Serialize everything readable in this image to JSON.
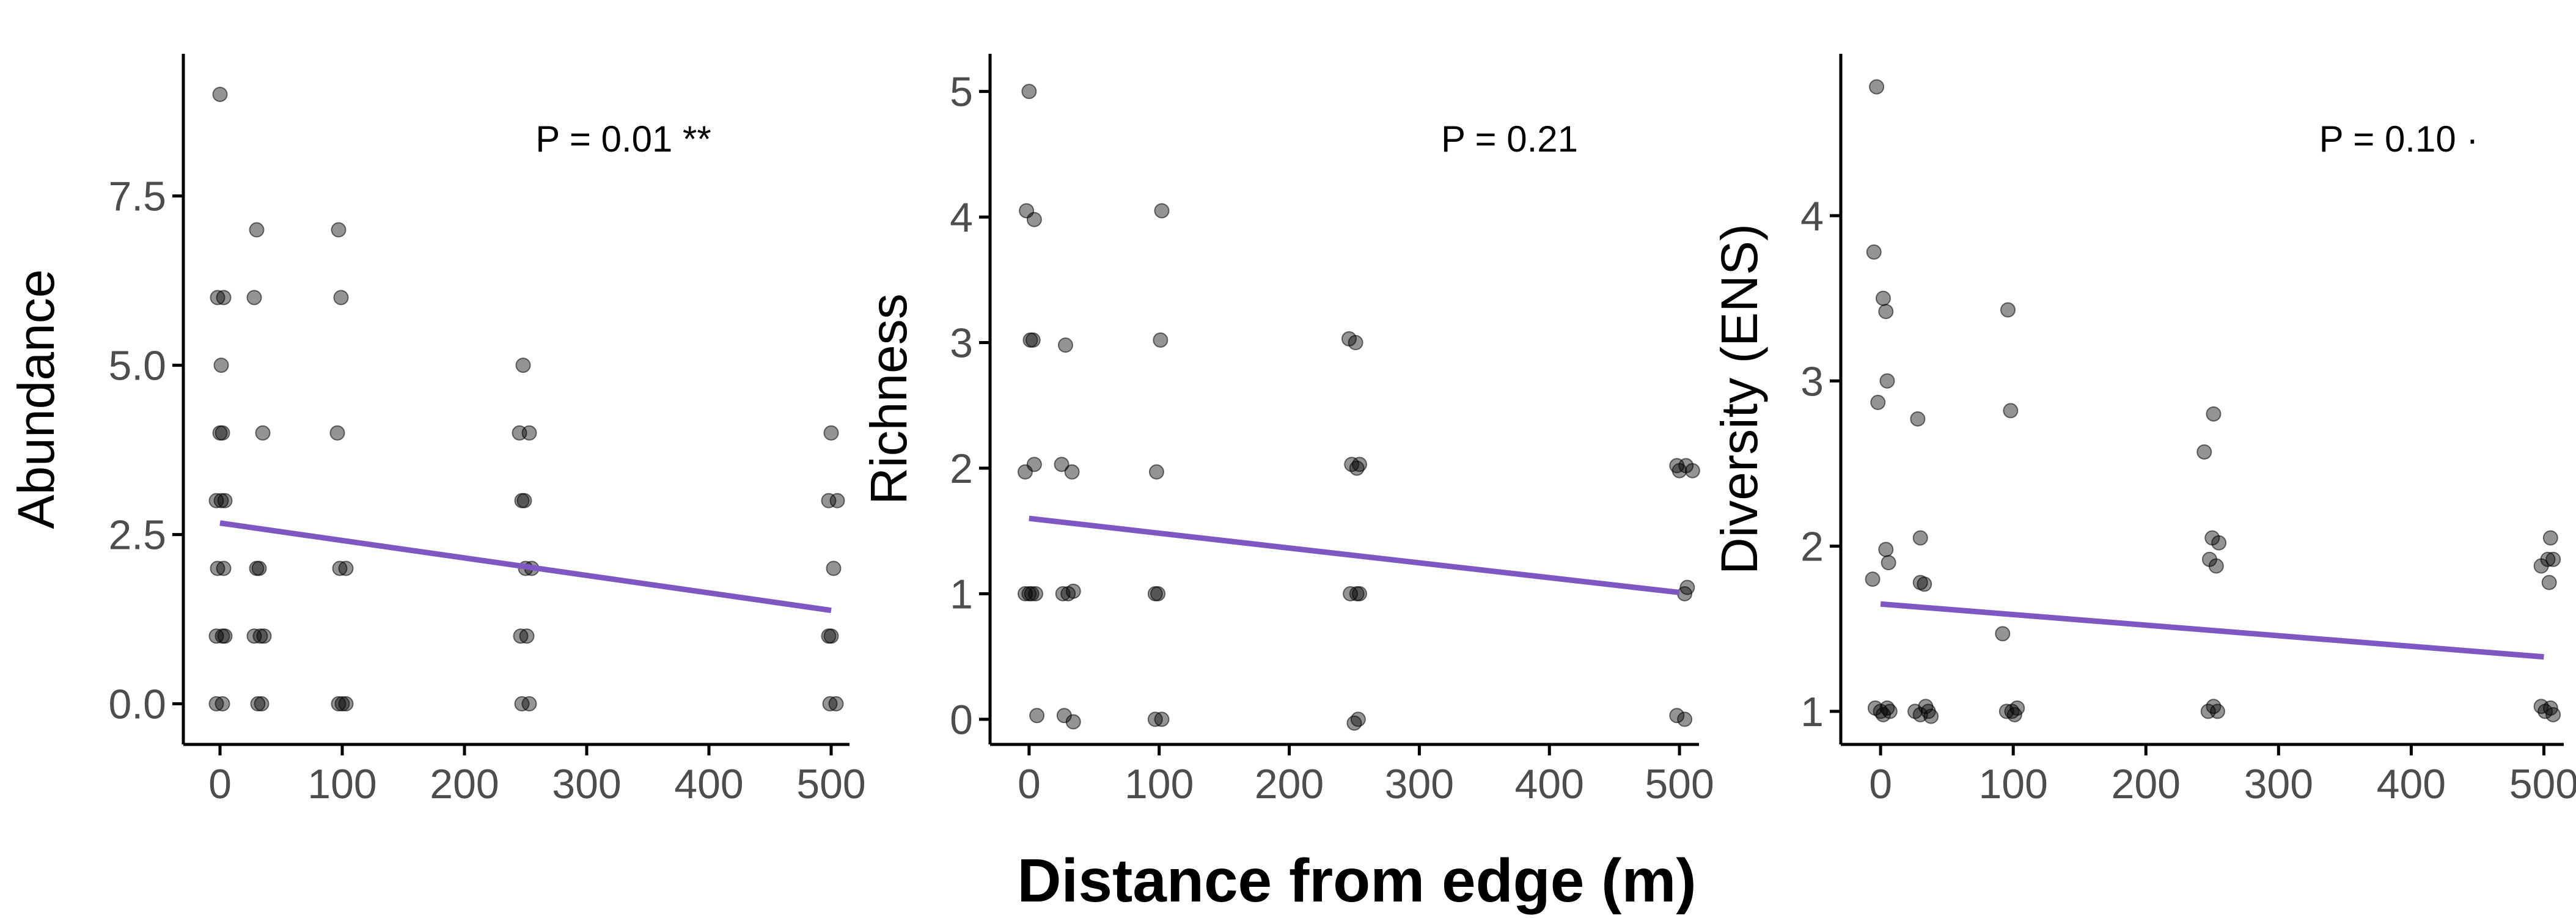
{
  "figure": {
    "shared_xlabel": "Distance from edge (m)"
  },
  "colors": {
    "trend_line": "#7e57c2",
    "points": "#000000",
    "axis": "#000000",
    "tick_text": "#4d4d4d"
  },
  "chart_data": [
    {
      "type": "scatter",
      "ylabel": "Abundance",
      "annotation": "P = 0.01 **",
      "xlim": [
        -30,
        515
      ],
      "ylim": [
        -0.6,
        9.6
      ],
      "xticks": [
        0,
        100,
        200,
        300,
        400,
        500
      ],
      "yticks": [
        0,
        2.5,
        5,
        7.5
      ],
      "ytick_labels": [
        "0.0",
        "2.5",
        "5.0",
        "7.5"
      ],
      "trend": {
        "x": [
          0,
          500
        ],
        "y": [
          2.67,
          1.38
        ]
      },
      "points": [
        [
          0,
          9
        ],
        [
          -2,
          6
        ],
        [
          3,
          6
        ],
        [
          1,
          5
        ],
        [
          2,
          4
        ],
        [
          0,
          4
        ],
        [
          -3,
          3
        ],
        [
          4,
          3
        ],
        [
          1,
          3
        ],
        [
          -2,
          2
        ],
        [
          3,
          2
        ],
        [
          -3,
          1
        ],
        [
          4,
          1
        ],
        [
          2,
          1
        ],
        [
          -3,
          0
        ],
        [
          2,
          0
        ],
        [
          30,
          7
        ],
        [
          28,
          6
        ],
        [
          35,
          4
        ],
        [
          30,
          2
        ],
        [
          32,
          2
        ],
        [
          28,
          1
        ],
        [
          33,
          1
        ],
        [
          36,
          1
        ],
        [
          31,
          0
        ],
        [
          34,
          0
        ],
        [
          97,
          7
        ],
        [
          99,
          6
        ],
        [
          96,
          4
        ],
        [
          98,
          2
        ],
        [
          103,
          2
        ],
        [
          97,
          0
        ],
        [
          100,
          0
        ],
        [
          103,
          0
        ],
        [
          248,
          5
        ],
        [
          245,
          4
        ],
        [
          253,
          4
        ],
        [
          247,
          3
        ],
        [
          249,
          3
        ],
        [
          250,
          2
        ],
        [
          255,
          2
        ],
        [
          246,
          1
        ],
        [
          251,
          1
        ],
        [
          247,
          0
        ],
        [
          253,
          0
        ],
        [
          500,
          4
        ],
        [
          498,
          3
        ],
        [
          505,
          3
        ],
        [
          502,
          2
        ],
        [
          498,
          1
        ],
        [
          500,
          1
        ],
        [
          499,
          0
        ],
        [
          504,
          0
        ]
      ]
    },
    {
      "type": "scatter",
      "ylabel": "Richness",
      "annotation": "P = 0.21",
      "xlim": [
        -30,
        515
      ],
      "ylim": [
        -0.2,
        5.3
      ],
      "xticks": [
        0,
        100,
        200,
        300,
        400,
        500
      ],
      "yticks": [
        0,
        1,
        2,
        3,
        4,
        5
      ],
      "ytick_labels": [
        "0",
        "1",
        "2",
        "3",
        "4",
        "5"
      ],
      "trend": {
        "x": [
          0,
          500
        ],
        "y": [
          1.6,
          1.01
        ]
      },
      "points": [
        [
          0,
          5
        ],
        [
          -2,
          4.05
        ],
        [
          4,
          3.98
        ],
        [
          1,
          3.02
        ],
        [
          3,
          3.02
        ],
        [
          -3,
          1.97
        ],
        [
          4,
          2.03
        ],
        [
          -3,
          1
        ],
        [
          0,
          1
        ],
        [
          2,
          1
        ],
        [
          5,
          1
        ],
        [
          6,
          0.03
        ],
        [
          28,
          2.98
        ],
        [
          25,
          2.03
        ],
        [
          33,
          1.97
        ],
        [
          26,
          1
        ],
        [
          30,
          1
        ],
        [
          34,
          1.02
        ],
        [
          27,
          0.03
        ],
        [
          34,
          -0.02
        ],
        [
          102,
          4.05
        ],
        [
          101,
          3.02
        ],
        [
          98,
          1.97
        ],
        [
          97,
          1
        ],
        [
          99,
          1
        ],
        [
          97,
          0
        ],
        [
          102,
          0
        ],
        [
          246,
          3.03
        ],
        [
          251,
          3
        ],
        [
          248,
          2.03
        ],
        [
          252,
          2
        ],
        [
          254,
          2.03
        ],
        [
          247,
          1
        ],
        [
          252,
          1
        ],
        [
          254,
          1
        ],
        [
          250,
          -0.03
        ],
        [
          253,
          0
        ],
        [
          498,
          2.02
        ],
        [
          505,
          2.02
        ],
        [
          500,
          1.98
        ],
        [
          510,
          1.98
        ],
        [
          506,
          1.05
        ],
        [
          504,
          1
        ],
        [
          498,
          0.03
        ],
        [
          504,
          0
        ]
      ]
    },
    {
      "type": "scatter",
      "ylabel": "Diversity (ENS)",
      "annotation": "P = 0.10 ·",
      "xlim": [
        -30,
        515
      ],
      "ylim": [
        0.8,
        4.98
      ],
      "xticks": [
        0,
        100,
        200,
        300,
        400,
        500
      ],
      "yticks": [
        1,
        2,
        3,
        4
      ],
      "ytick_labels": [
        "1",
        "2",
        "3",
        "4"
      ],
      "trend": {
        "x": [
          0,
          500
        ],
        "y": [
          1.65,
          1.33
        ]
      },
      "points": [
        [
          -3,
          4.78
        ],
        [
          -5,
          3.78
        ],
        [
          2,
          3.5
        ],
        [
          4,
          3.42
        ],
        [
          5,
          3.0
        ],
        [
          -2,
          2.87
        ],
        [
          4,
          1.98
        ],
        [
          6,
          1.9
        ],
        [
          -6,
          1.8
        ],
        [
          -4,
          1.02
        ],
        [
          0,
          1
        ],
        [
          2,
          0.98
        ],
        [
          5,
          1.02
        ],
        [
          7,
          1
        ],
        [
          28,
          2.77
        ],
        [
          30,
          2.05
        ],
        [
          30,
          1.78
        ],
        [
          33,
          1.77
        ],
        [
          26,
          1
        ],
        [
          30,
          0.98
        ],
        [
          34,
          1.03
        ],
        [
          36,
          1
        ],
        [
          38,
          0.97
        ],
        [
          96,
          3.43
        ],
        [
          98,
          2.82
        ],
        [
          92,
          1.47
        ],
        [
          95,
          1
        ],
        [
          99,
          1
        ],
        [
          101,
          0.98
        ],
        [
          103,
          1.02
        ],
        [
          244,
          2.57
        ],
        [
          251,
          2.8
        ],
        [
          250,
          2.05
        ],
        [
          255,
          2.02
        ],
        [
          248,
          1.92
        ],
        [
          253,
          1.88
        ],
        [
          247,
          1
        ],
        [
          251,
          1.03
        ],
        [
          254,
          1
        ],
        [
          505,
          2.05
        ],
        [
          503,
          1.92
        ],
        [
          507,
          1.92
        ],
        [
          498,
          1.88
        ],
        [
          504,
          1.78
        ],
        [
          498,
          1.03
        ],
        [
          501,
          1
        ],
        [
          505,
          1.02
        ],
        [
          507,
          0.98
        ]
      ]
    }
  ]
}
